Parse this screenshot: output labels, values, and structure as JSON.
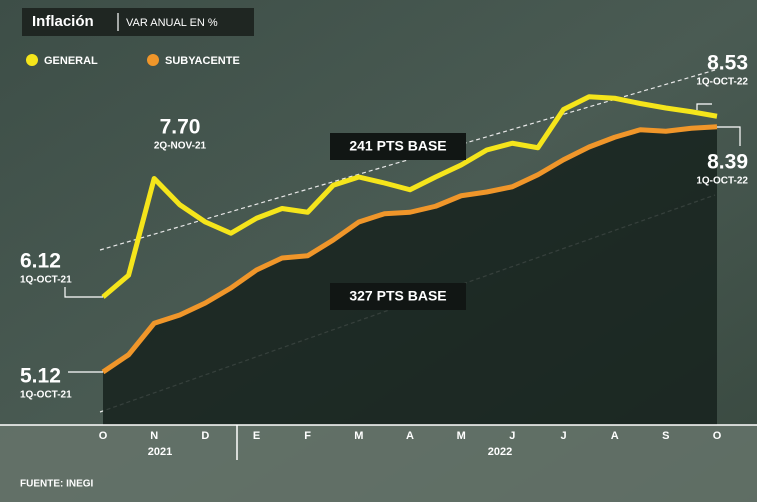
{
  "chart_data": {
    "type": "line",
    "title": "Inflación",
    "subtitle": "VAR ANUAL EN %",
    "categories": [
      "O",
      null,
      "N",
      null,
      "D",
      null,
      "E",
      null,
      "F",
      null,
      "M",
      null,
      "A",
      null,
      "M",
      null,
      "J",
      null,
      "J",
      null,
      "A",
      null,
      "S",
      null,
      "O"
    ],
    "year_labels": [
      "2021",
      "2022"
    ],
    "series": [
      {
        "name": "GENERAL",
        "color": "#f5e51b",
        "values": [
          6.12,
          6.41,
          7.7,
          7.35,
          7.12,
          6.97,
          7.17,
          7.3,
          7.25,
          7.61,
          7.72,
          7.64,
          7.55,
          7.72,
          7.88,
          8.08,
          8.17,
          8.11,
          8.62,
          8.79,
          8.77,
          8.7,
          8.64,
          8.59,
          8.53
        ],
        "value_labels": [
          "6.12",
          null,
          "7.70",
          null,
          null,
          null,
          null,
          null,
          null,
          null,
          null,
          null,
          null,
          null,
          null,
          null,
          null,
          null,
          null,
          null,
          null,
          null,
          null,
          null,
          "8.53"
        ],
        "point_labels": [
          "1Q-OCT-21",
          null,
          "2Q-NOV-21",
          null,
          null,
          null,
          null,
          null,
          null,
          null,
          null,
          null,
          null,
          null,
          null,
          null,
          null,
          null,
          null,
          null,
          null,
          null,
          null,
          null,
          "1Q-OCT-22"
        ]
      },
      {
        "name": "SUBYACENTE",
        "color": "#f0962a",
        "values": [
          5.12,
          5.35,
          5.77,
          5.88,
          6.04,
          6.24,
          6.48,
          6.64,
          6.67,
          6.88,
          7.12,
          7.23,
          7.25,
          7.33,
          7.47,
          7.52,
          7.59,
          7.75,
          7.95,
          8.12,
          8.25,
          8.35,
          8.33,
          8.37,
          8.39
        ],
        "value_labels": [
          "5.12",
          null,
          null,
          null,
          null,
          null,
          null,
          null,
          null,
          null,
          null,
          null,
          null,
          null,
          null,
          null,
          null,
          null,
          null,
          null,
          null,
          null,
          null,
          null,
          "8.39"
        ],
        "point_labels": [
          "1Q-OCT-21",
          null,
          null,
          null,
          null,
          null,
          null,
          null,
          null,
          null,
          null,
          null,
          null,
          null,
          null,
          null,
          null,
          null,
          null,
          null,
          null,
          null,
          null,
          null,
          "1Q-OCT-22"
        ]
      }
    ],
    "annotations": [
      "241 PTS BASE",
      "327 PTS BASE"
    ],
    "ylim": [
      4.3,
      9.3
    ],
    "source": "FUENTE: INEGI"
  }
}
